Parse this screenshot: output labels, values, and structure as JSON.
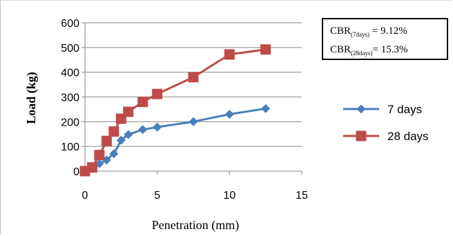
{
  "chart_data": {
    "type": "line",
    "xlabel": "Penetration (mm)",
    "ylabel": "Load (kg)",
    "xlim": [
      0,
      15
    ],
    "ylim": [
      0,
      600
    ],
    "xticks": [
      "0",
      "5",
      "10",
      "15"
    ],
    "yticks": [
      "0",
      "100",
      "200",
      "300",
      "400",
      "500",
      "600"
    ],
    "grid": "horizontal",
    "legend_position": "right",
    "series": [
      {
        "name": "7 days",
        "color": "#4a7ebb",
        "marker": "diamond",
        "x": [
          0,
          0.5,
          1,
          1.5,
          2,
          2.5,
          3,
          4,
          5,
          7.5,
          10,
          12.5
        ],
        "y": [
          0,
          10,
          30,
          45,
          70,
          125,
          148,
          168,
          178,
          200,
          230,
          253
        ]
      },
      {
        "name": "28 days",
        "color": "#be4b48",
        "marker": "square",
        "x": [
          0,
          0.5,
          1,
          1.5,
          2,
          2.5,
          3,
          4,
          5,
          7.5,
          10,
          12.5
        ],
        "y": [
          0,
          15,
          65,
          122,
          160,
          212,
          240,
          280,
          312,
          380,
          472,
          492
        ]
      }
    ],
    "annotation": {
      "line1_prefix": "CBR",
      "line1_sub": "(7days)",
      "line1_value": " = 9.12%",
      "line2_prefix": "CBR",
      "line2_sub": "(28days)",
      "line2_value": "= 15.3%"
    }
  }
}
